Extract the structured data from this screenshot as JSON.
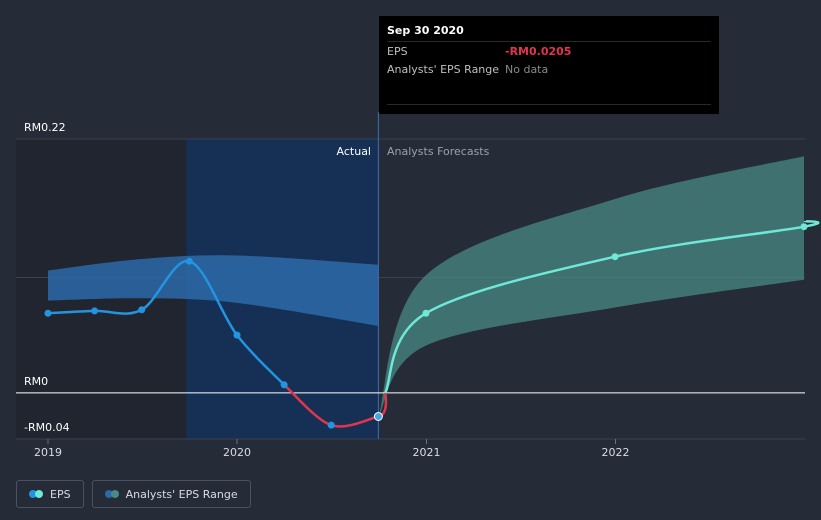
{
  "chart_data": {
    "type": "line",
    "y_tick_labels": [
      "RM0.22",
      "RM0",
      "-RM0.04"
    ],
    "x_tick_labels": [
      "2019",
      "2020",
      "2021",
      "2022"
    ],
    "ylim": [
      -0.04,
      0.22
    ],
    "region_labels": {
      "actual": "Actual",
      "forecast": "Analysts Forecasts"
    },
    "eps_actual": {
      "name": "EPS",
      "x": [
        "2019-01-01",
        "2019-04-01",
        "2019-07-01",
        "2019-10-01",
        "2020-01-01",
        "2020-04-01",
        "2020-07-01",
        "2020-09-30"
      ],
      "y": [
        0.069,
        0.071,
        0.072,
        0.114,
        0.05,
        0.007,
        -0.028,
        -0.0205
      ]
    },
    "eps_forecast": {
      "x": [
        "2020-09-30",
        "2020-12-31",
        "2021-12-31",
        "2022-12-31"
      ],
      "y": [
        -0.0205,
        0.069,
        0.118,
        0.144
      ]
    },
    "analysts_range": {
      "name": "Analysts' EPS Range",
      "x": [
        "2020-09-30",
        "2020-12-31",
        "2021-12-31",
        "2022-12-31"
      ],
      "low": [
        -0.0205,
        0.041,
        0.074,
        0.098
      ],
      "high": [
        -0.0205,
        0.102,
        0.168,
        0.205
      ]
    },
    "past_estimate_band": {
      "x": [
        "2019-01-01",
        "2019-07-01",
        "2020-01-01",
        "2020-09-30"
      ],
      "low": [
        0.08,
        0.082,
        0.078,
        0.058
      ],
      "high": [
        0.106,
        0.116,
        0.119,
        0.111
      ]
    },
    "colors": {
      "eps_positive": "#2394df",
      "eps_negative": "#e0364d",
      "forecast": "#6ee8d7",
      "band": "#2b6aa8",
      "range": "#4a8a86",
      "highlight": "#14315a",
      "background": "#252b37"
    }
  },
  "tooltip": {
    "date": "Sep 30 2020",
    "eps_label": "EPS",
    "eps_value": "-RM0.0205",
    "range_label": "Analysts' EPS Range",
    "range_value": "No data"
  },
  "legend": {
    "eps": "EPS",
    "range": "Analysts' EPS Range"
  }
}
